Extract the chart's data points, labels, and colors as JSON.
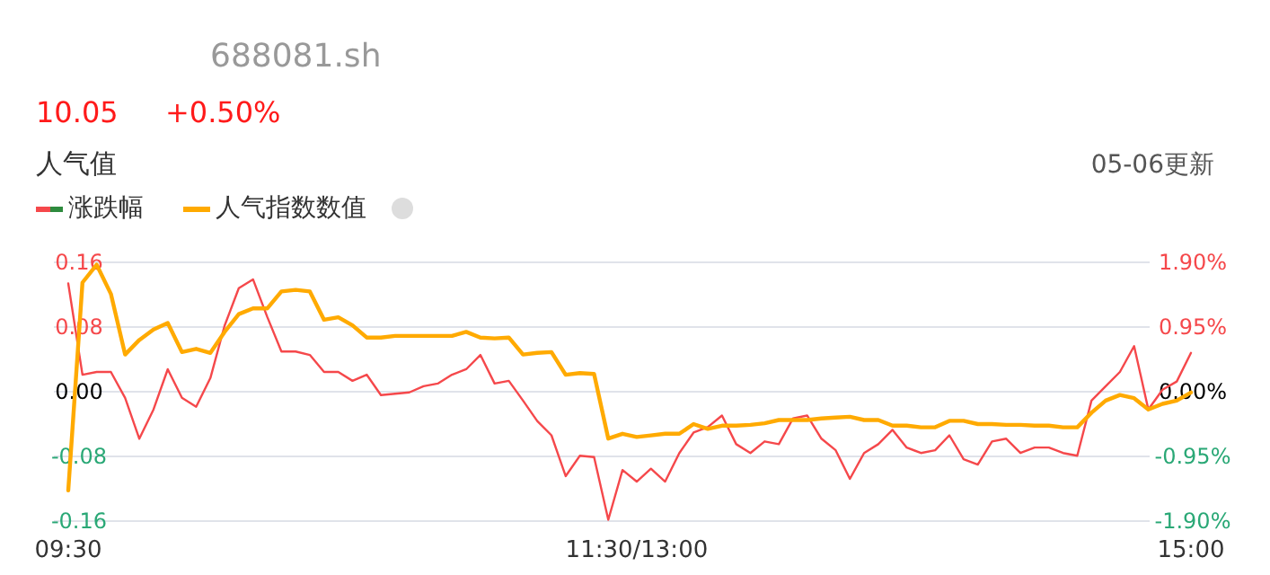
{
  "chart_data": {
    "type": "line",
    "title": "688081.sh",
    "subtitle": "人气值",
    "annotations": [
      "10.05",
      "+0.50%",
      "05-06更新"
    ],
    "categories": [
      "09:30",
      null,
      null,
      null,
      null,
      null,
      null,
      null,
      null,
      null,
      null,
      null,
      null,
      null,
      null,
      null,
      null,
      null,
      null,
      null,
      null,
      null,
      null,
      null,
      null,
      null,
      null,
      null,
      null,
      null,
      null,
      null,
      null,
      null,
      null,
      null,
      null,
      null,
      null,
      null,
      "11:30/13:00",
      null,
      null,
      null,
      null,
      null,
      null,
      null,
      null,
      null,
      null,
      null,
      null,
      null,
      null,
      null,
      null,
      null,
      null,
      null,
      null,
      null,
      null,
      null,
      null,
      null,
      null,
      null,
      null,
      null,
      null,
      null,
      null,
      null,
      null,
      null,
      null,
      null,
      null,
      "15:00"
    ],
    "series": [
      {
        "name": "涨跌幅",
        "color": "#f5484b",
        "axis": "y2",
        "values": [
          1.59,
          0.25,
          0.29,
          0.29,
          -0.09,
          -0.69,
          -0.26,
          0.33,
          -0.09,
          -0.22,
          0.2,
          0.97,
          1.52,
          1.65,
          1.1,
          0.59,
          0.59,
          0.54,
          0.29,
          0.29,
          0.16,
          0.25,
          -0.05,
          -0.03,
          -0.01,
          0.08,
          0.12,
          0.25,
          0.33,
          0.54,
          0.12,
          0.16,
          -0.13,
          -0.43,
          -0.64,
          -1.24,
          -0.94,
          -0.96,
          -1.88,
          -1.15,
          -1.32,
          -1.13,
          -1.32,
          -0.9,
          -0.6,
          -0.52,
          -0.35,
          -0.77,
          -0.9,
          -0.73,
          -0.77,
          -0.39,
          -0.35,
          -0.69,
          -0.86,
          -1.28,
          -0.9,
          -0.77,
          -0.56,
          -0.82,
          -0.9,
          -0.86,
          -0.64,
          -0.99,
          -1.07,
          -0.73,
          -0.69,
          -0.9,
          -0.82,
          -0.82,
          -0.9,
          -0.94,
          -0.13,
          0.08,
          0.29,
          0.67,
          -0.26,
          0.03,
          0.15,
          0.57
        ]
      },
      {
        "name": "人气指数数值",
        "color": "#ffaa00",
        "values": [
          -0.122,
          0.135,
          0.157,
          0.121,
          0.046,
          0.064,
          0.077,
          0.085,
          0.049,
          0.053,
          0.048,
          0.074,
          0.096,
          0.103,
          0.103,
          0.124,
          0.126,
          0.124,
          0.089,
          0.092,
          0.082,
          0.067,
          0.067,
          0.069,
          0.069,
          0.069,
          0.069,
          0.069,
          0.074,
          0.067,
          0.066,
          0.067,
          0.046,
          0.048,
          0.049,
          0.021,
          0.023,
          0.022,
          -0.058,
          -0.052,
          -0.056,
          -0.054,
          -0.052,
          -0.052,
          -0.04,
          -0.046,
          -0.042,
          -0.042,
          -0.041,
          -0.039,
          -0.035,
          -0.035,
          -0.035,
          -0.033,
          -0.032,
          -0.031,
          -0.035,
          -0.035,
          -0.042,
          -0.042,
          -0.044,
          -0.044,
          -0.036,
          -0.036,
          -0.04,
          -0.04,
          -0.041,
          -0.041,
          -0.042,
          -0.042,
          -0.044,
          -0.044,
          -0.026,
          -0.011,
          -0.004,
          -0.008,
          -0.022,
          -0.015,
          -0.011,
          -0.001
        ]
      }
    ],
    "ylim": [
      -0.16,
      0.16
    ],
    "yticks": [
      {
        "value": 0.16,
        "label": "0.16"
      },
      {
        "value": 0.08,
        "label": "0.08"
      },
      {
        "value": 0,
        "label": "0.00"
      },
      {
        "value": -0.08,
        "label": "-0.08"
      },
      {
        "value": -0.16,
        "label": "-0.16"
      }
    ],
    "y2lim": [
      -1.9,
      1.9
    ],
    "y2ticks": [
      {
        "value": 1.9,
        "label": "1.90%"
      },
      {
        "value": 0.95,
        "label": "0.95%"
      },
      {
        "value": 0,
        "label": "0.00%"
      },
      {
        "value": -0.95,
        "label": "-0.95%"
      },
      {
        "value": -1.9,
        "label": "-1.90%"
      }
    ],
    "grid": "y",
    "legend": "top left",
    "marker": "none",
    "line_style": "solid"
  }
}
